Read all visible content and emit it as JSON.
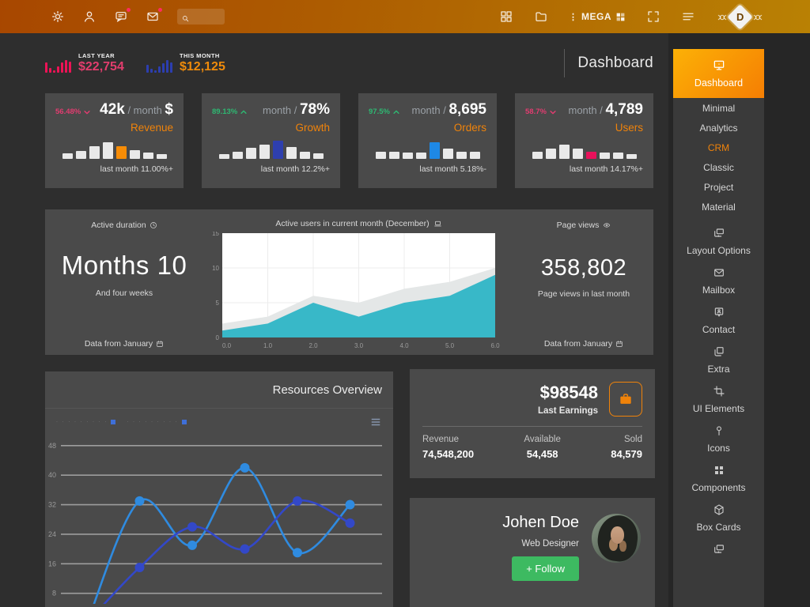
{
  "colors": {
    "accent_orange": "#f0830a",
    "pink": "#e9125e",
    "green": "#2eb872",
    "teal": "#38b8c8",
    "bright_blue": "#1e88e5",
    "dark_blue": "#2e3fae"
  },
  "navbar": {
    "search": {
      "placeholder": ""
    },
    "mega_label": "MEGA",
    "logo_letter": "D"
  },
  "header": {
    "title": "Dashboard",
    "stats": [
      {
        "label": "LAST YEAR",
        "value": "$22,754",
        "bar_color": "#ed1356",
        "value_color": "#e23d6d",
        "bars": [
          13,
          6,
          3,
          8,
          13,
          16,
          14
        ]
      },
      {
        "label": "THIS MONTH",
        "value": "$12,125",
        "bar_color": "#2c3eb0",
        "value_color": "#ef8b0b",
        "bars": [
          10,
          5,
          3,
          8,
          12,
          16,
          13
        ]
      }
    ]
  },
  "stat_cards": [
    {
      "change": "56.48%",
      "trend": "down",
      "trend_color": "#e23c70",
      "pre_bold": "42k",
      "muted": "/ month",
      "post_bold": "$",
      "category": "Revenue",
      "footer": "last month 11.00%+",
      "bars": [
        7,
        10,
        16,
        21,
        16,
        11,
        8,
        6
      ],
      "highlight_index": 4,
      "highlight_color": "#f78c06"
    },
    {
      "change": "89.13%",
      "trend": "up",
      "trend_color": "#2eb872",
      "pre_bold": "",
      "muted": "month /",
      "post_bold": "78%",
      "category": "Growth",
      "footer": "last month 12.2%+",
      "bars": [
        6,
        9,
        14,
        18,
        23,
        15,
        9,
        7
      ],
      "highlight_index": 4,
      "highlight_color": "#2e3fae"
    },
    {
      "change": "97.5%",
      "trend": "up",
      "trend_color": "#2eb872",
      "pre_bold": "",
      "muted": "month /",
      "post_bold": "8,695",
      "category": "Orders",
      "footer": "last month 5.18%-",
      "bars": [
        9,
        9,
        8,
        8,
        21,
        13,
        9,
        9
      ],
      "highlight_index": 4,
      "highlight_color": "#1e88e5"
    },
    {
      "change": "58.7%",
      "trend": "down",
      "trend_color": "#e23c70",
      "pre_bold": "",
      "muted": "month /",
      "post_bold": "4,789",
      "category": "Users",
      "footer": "last month 14.17%+",
      "bars": [
        9,
        13,
        18,
        13,
        9,
        8,
        8,
        6
      ],
      "highlight_index": 4,
      "highlight_color": "#e8115b"
    }
  ],
  "overview": {
    "left": {
      "title": "Active duration",
      "big": "Months 10",
      "sub": "And four weeks",
      "footer": "Data from January"
    },
    "right": {
      "title": "Page views",
      "big": "358,802",
      "sub": "Page views in last month",
      "footer": "Data from January"
    },
    "chart": {
      "title": "Active users in current month (December)",
      "chart_data": {
        "type": "area",
        "x": [
          0,
          1,
          2,
          3,
          4,
          5,
          6
        ],
        "xticks": [
          "0.0",
          "1.0",
          "2.0",
          "3.0",
          "4.0",
          "5.0",
          "6.0"
        ],
        "yticks": [
          0,
          5,
          10,
          15
        ],
        "ylim": [
          0,
          15
        ],
        "grid": true,
        "series": [
          {
            "name": "upper-band",
            "color": "#e4e7e7",
            "values": [
              2,
              3,
              6,
              5,
              7,
              8,
              10
            ]
          },
          {
            "name": "active-users",
            "color": "#38b8c8",
            "values": [
              1,
              2,
              5,
              3,
              5,
              6,
              9
            ]
          }
        ]
      }
    }
  },
  "resources": {
    "title": "Resources Overview",
    "legend": [
      {
        "label": "· · · · · · · · ·",
        "marker": "#3f6fd8"
      },
      {
        "label": "· · · · · · · · ·",
        "marker": "#3f6fd8"
      }
    ],
    "chart_data": {
      "type": "line",
      "x": [
        0,
        1,
        2,
        3,
        4,
        5
      ],
      "yticks": [
        0,
        8,
        16,
        24,
        32,
        40,
        48
      ],
      "ylim": [
        0,
        52
      ],
      "grid": true,
      "series": [
        {
          "name": "series-1",
          "color": "#2f8be0",
          "values": [
            0,
            33,
            21,
            42,
            19,
            32
          ]
        },
        {
          "name": "series-2",
          "color": "#3348c8",
          "values": [
            0,
            15,
            26,
            20,
            33,
            27
          ]
        }
      ]
    }
  },
  "earnings": {
    "amount": "$98548",
    "label": "Last Earnings",
    "stats": [
      {
        "label": "Revenue",
        "value": "74,548,200"
      },
      {
        "label": "Available",
        "value": "54,458"
      },
      {
        "label": "Sold",
        "value": "84,579"
      }
    ]
  },
  "profile": {
    "name": "Johen Doe",
    "role": "Web Designer",
    "follow": "+ Follow"
  },
  "sidebar": {
    "items": [
      {
        "label": "Dashboard",
        "icon": "monitor",
        "active": true
      },
      {
        "label": "Minimal"
      },
      {
        "label": "Analytics"
      },
      {
        "label": "CRM",
        "accent": true
      },
      {
        "label": "Classic"
      },
      {
        "label": "Project"
      },
      {
        "label": "Material"
      },
      {
        "label": "Layout Options",
        "icon": "monitors"
      },
      {
        "label": "Mailbox",
        "icon": "mail"
      },
      {
        "label": "Contact",
        "icon": "contact-card"
      },
      {
        "label": "Extra",
        "icon": "layers"
      },
      {
        "label": "UI Elements",
        "icon": "crop"
      },
      {
        "label": "Icons",
        "icon": "pin"
      },
      {
        "label": "Components",
        "icon": "components"
      },
      {
        "label": "Box Cards",
        "icon": "cube"
      },
      {
        "label": "",
        "icon": "monitors"
      }
    ]
  }
}
